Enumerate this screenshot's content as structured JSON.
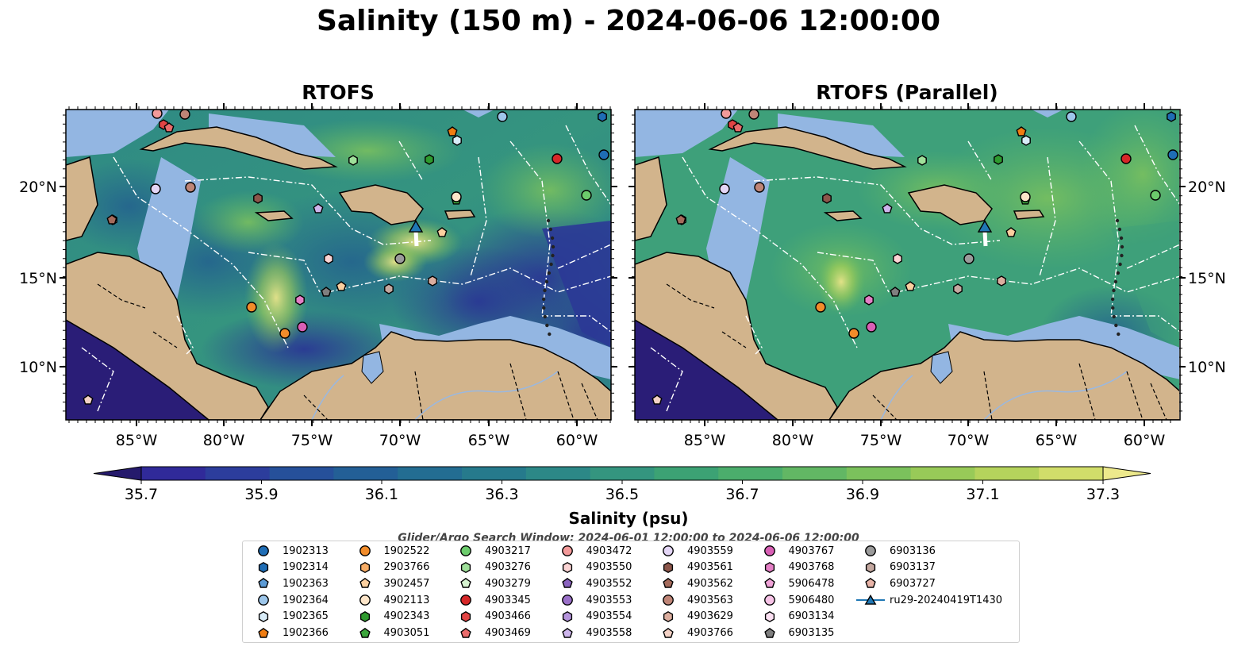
{
  "title": "Salinity (150 m) - 2024-06-06 12:00:00",
  "map_left_title": "RTOFS",
  "map_right_title": "RTOFS (Parallel)",
  "lat_ticks": [
    "20°N",
    "15°N",
    "10°N"
  ],
  "lon_ticks": [
    "85°W",
    "80°W",
    "75°W",
    "70°W",
    "65°W",
    "60°W"
  ],
  "colorbar": {
    "label": "Salinity (psu)",
    "ticks": [
      "35.7",
      "35.9",
      "36.1",
      "36.3",
      "36.5",
      "36.7",
      "36.9",
      "37.1",
      "37.3"
    ],
    "colors": [
      "#251a6c",
      "#302a99",
      "#2c3d9c",
      "#26509a",
      "#235f96",
      "#236d92",
      "#267a8c",
      "#2c8887",
      "#34957f",
      "#3ca274",
      "#4bad6c",
      "#62b764",
      "#7bc15c",
      "#98ca58",
      "#b5d35c",
      "#d1dd6a",
      "#ede98c"
    ]
  },
  "search_window": "Glider/Argo Search Window: 2024-06-01 12:00:00 to 2024-06-06 12:00:00",
  "legend": [
    {
      "id": "1902313",
      "marker": "circle",
      "color": "#1f6db5"
    },
    {
      "id": "1902314",
      "marker": "hexagon",
      "color": "#1f6db5"
    },
    {
      "id": "1902363",
      "marker": "pentagon",
      "color": "#5c9bd5"
    },
    {
      "id": "1902364",
      "marker": "circle",
      "color": "#9dc6ea"
    },
    {
      "id": "1902365",
      "marker": "hexagon",
      "color": "#d8ecf8"
    },
    {
      "id": "1902366",
      "marker": "pentagon",
      "color": "#f07d12"
    },
    {
      "id": "1902522",
      "marker": "circle",
      "color": "#f28c2a"
    },
    {
      "id": "2903766",
      "marker": "hexagon",
      "color": "#f8ad66"
    },
    {
      "id": "3902457",
      "marker": "pentagon",
      "color": "#fbcf9f"
    },
    {
      "id": "4902113",
      "marker": "circle",
      "color": "#fde5c9"
    },
    {
      "id": "4902343",
      "marker": "hexagon",
      "color": "#2e9a2e"
    },
    {
      "id": "4903051",
      "marker": "pentagon",
      "color": "#3ca63c"
    },
    {
      "id": "4903217",
      "marker": "circle",
      "color": "#6ccc6c"
    },
    {
      "id": "4903276",
      "marker": "hexagon",
      "color": "#9fe09a"
    },
    {
      "id": "4903279",
      "marker": "pentagon",
      "color": "#d6f3d0"
    },
    {
      "id": "4903345",
      "marker": "circle",
      "color": "#d62728"
    },
    {
      "id": "4903466",
      "marker": "hexagon",
      "color": "#e24444"
    },
    {
      "id": "4903469",
      "marker": "pentagon",
      "color": "#ea6b6b"
    },
    {
      "id": "4903472",
      "marker": "circle",
      "color": "#f39a9a"
    },
    {
      "id": "4903550",
      "marker": "hexagon",
      "color": "#fbd4d4"
    },
    {
      "id": "4903552",
      "marker": "pentagon",
      "color": "#8a63bf"
    },
    {
      "id": "4903553",
      "marker": "circle",
      "color": "#9a70c8"
    },
    {
      "id": "4903554",
      "marker": "hexagon",
      "color": "#b594dc"
    },
    {
      "id": "4903558",
      "marker": "pentagon",
      "color": "#cdb5ec"
    },
    {
      "id": "4903559",
      "marker": "circle",
      "color": "#e4d6f6"
    },
    {
      "id": "4903561",
      "marker": "hexagon",
      "color": "#8c564b"
    },
    {
      "id": "4903562",
      "marker": "pentagon",
      "color": "#a56b5c"
    },
    {
      "id": "4903563",
      "marker": "circle",
      "color": "#bf8577"
    },
    {
      "id": "4903629",
      "marker": "hexagon",
      "color": "#dcae9f"
    },
    {
      "id": "4903766",
      "marker": "pentagon",
      "color": "#f4d2c6"
    },
    {
      "id": "4903767",
      "marker": "circle",
      "color": "#d95fb5"
    },
    {
      "id": "4903768",
      "marker": "hexagon",
      "color": "#e57fc6"
    },
    {
      "id": "5906478",
      "marker": "pentagon",
      "color": "#f0a3d8"
    },
    {
      "id": "5906480",
      "marker": "circle",
      "color": "#f6c3e6"
    },
    {
      "id": "6903134",
      "marker": "hexagon",
      "color": "#fbe0f2"
    },
    {
      "id": "6903135",
      "marker": "pentagon",
      "color": "#7f7f7f"
    },
    {
      "id": "6903136",
      "marker": "circle",
      "color": "#9b9b9b"
    },
    {
      "id": "6903137",
      "marker": "hexagon",
      "color": "#c4a8a0"
    },
    {
      "id": "6903727",
      "marker": "pentagon",
      "color": "#e8b4a8"
    },
    {
      "id": "ru29-20240419T1430",
      "marker": "triangle",
      "color": "#1f77b4"
    }
  ]
}
